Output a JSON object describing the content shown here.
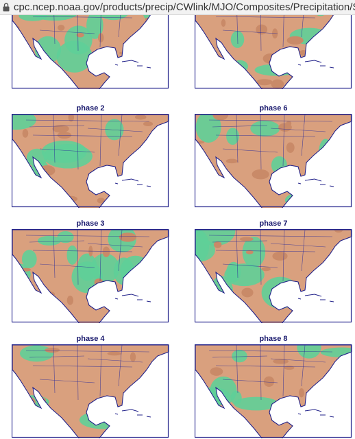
{
  "browser": {
    "url": "cpc.ncep.noaa.gov/products/precip/CWlink/MJO/Composites/Precipitation/SON/com"
  },
  "panels": [
    {
      "title": "phase 2"
    },
    {
      "title": "phase 6"
    },
    {
      "title": "phase 3"
    },
    {
      "title": "phase 7"
    },
    {
      "title": "phase 4"
    },
    {
      "title": "phase 8"
    }
  ]
}
